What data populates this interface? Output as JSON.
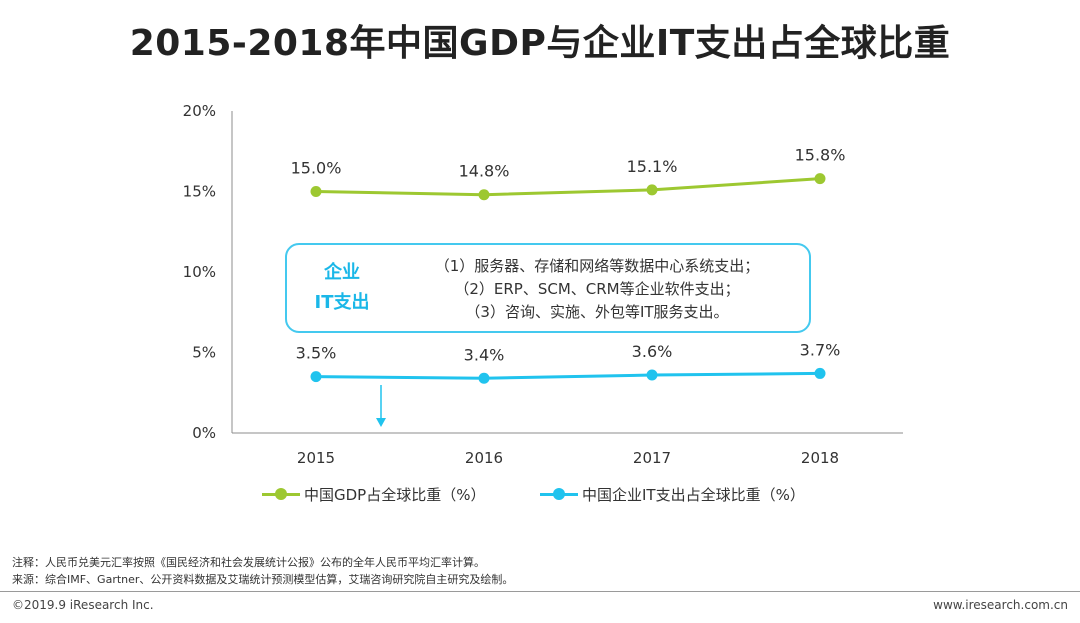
{
  "page": {
    "title": "2015-2018年中国GDP与企业IT支出占全球比重"
  },
  "chart_data": {
    "type": "line",
    "title": "2015-2018年中国GDP与企业IT支出占全球比重",
    "categories": [
      "2015",
      "2016",
      "2017",
      "2018"
    ],
    "ylim": [
      0,
      20
    ],
    "yticks": [
      0,
      5,
      10,
      15,
      20
    ],
    "ytick_labels": [
      "0%",
      "5%",
      "10%",
      "15%",
      "20%"
    ],
    "series": [
      {
        "name": "中国GDP占全球比重（%）",
        "color": "#9dc831",
        "values": [
          15.0,
          14.8,
          15.1,
          15.8
        ],
        "labels": [
          "15.0%",
          "14.8%",
          "15.1%",
          "15.8%"
        ]
      },
      {
        "name": "中国企业IT支出占全球比重（%）",
        "color": "#20c3ee",
        "values": [
          3.5,
          3.4,
          3.6,
          3.7
        ],
        "labels": [
          "3.5%",
          "3.4%",
          "3.6%",
          "3.7%"
        ]
      }
    ],
    "legend_position": "bottom",
    "annotation": {
      "heading_line1": "企业",
      "heading_line2": "IT支出",
      "lines": [
        "（1）服务器、存储和网络等数据中心系统支出；",
        "（2）ERP、SCM、CRM等企业软件支出；",
        "（3）咨询、实施、外包等IT服务支出。"
      ]
    }
  },
  "notes": {
    "note": "注释：人民币兑美元汇率按照《国民经济和社会发展统计公报》公布的全年人民币平均汇率计算。",
    "source": "来源：综合IMF、Gartner、公开资料数据及艾瑞统计预测模型估算，艾瑞咨询研究院自主研究及绘制。"
  },
  "footer": {
    "copyright": "©2019.9 iResearch Inc.",
    "website": "www.iresearch.com.cn"
  }
}
